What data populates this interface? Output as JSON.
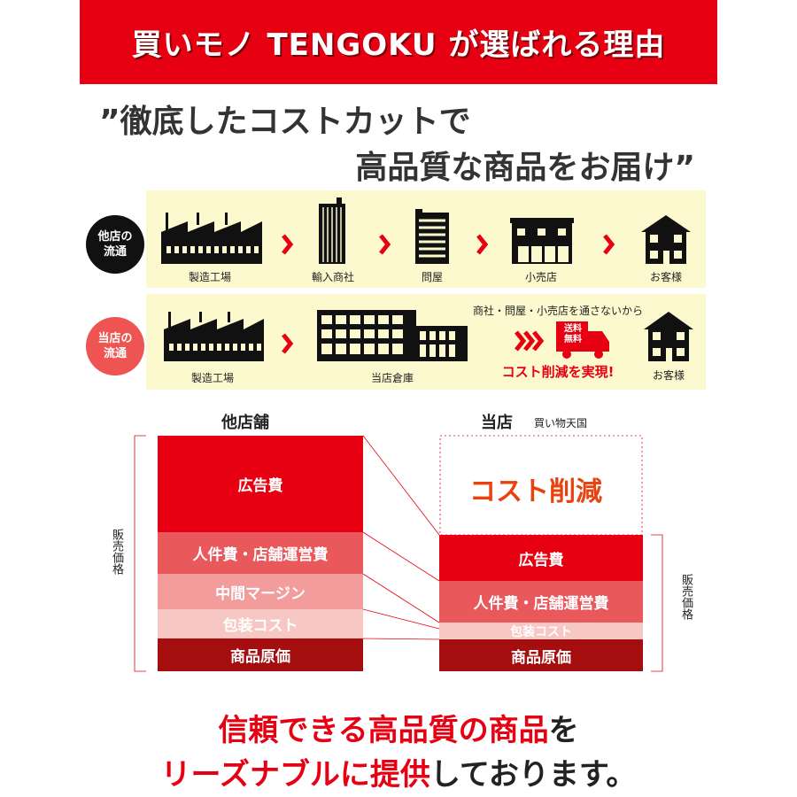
{
  "header": {
    "title": "買いモノ TENGOKU が選ばれる理由",
    "bg": "#e60012"
  },
  "quote": {
    "line1": "”徹底したコストカットで",
    "line2": "高品質な商品をお届け”"
  },
  "flow_other": {
    "badge": [
      "他店の",
      "流通"
    ],
    "steps": [
      "製造工場",
      "輸入商社",
      "問屋",
      "小売店",
      "お客様"
    ]
  },
  "flow_ours": {
    "badge": [
      "当店の",
      "流通"
    ],
    "steps": [
      "製造工場",
      "当店倉庫",
      "お客様"
    ],
    "note": "商社・問屋・小売店を通さないから",
    "truck_label": [
      "送料",
      "無料"
    ],
    "highlight": "コスト削減を実現!"
  },
  "compare": {
    "left_title": "他店舗",
    "right_title": "当店",
    "right_subtitle": "買い物天国",
    "price_label": "販売価格",
    "cost_cut": "コスト削減",
    "left_segments": [
      "広告費",
      "人件費・店舗運営費",
      "中間マージン",
      "包装コスト",
      "商品原価"
    ],
    "right_segments": [
      "広告費",
      "人件費・店舗運営費",
      "包装コスト",
      "商品原価"
    ]
  },
  "footer": {
    "line1_red": "信頼できる高品質の商品",
    "line1_black": "を",
    "line2_red": "リーズナブルに提供",
    "line2_black": "しております。"
  }
}
